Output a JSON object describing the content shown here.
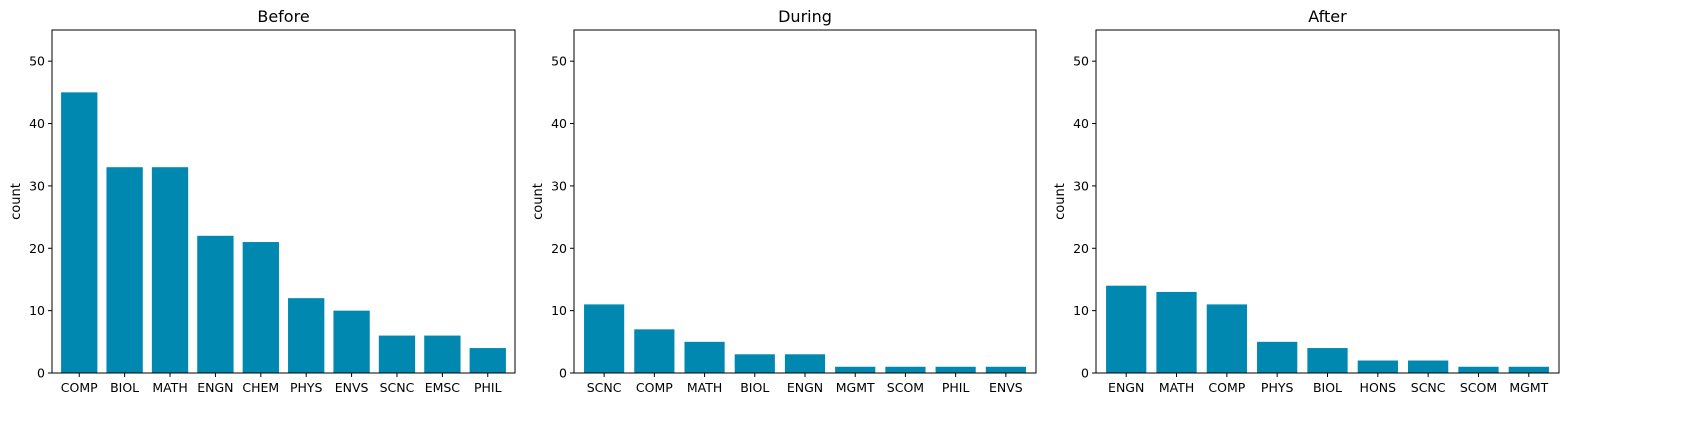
{
  "style": {
    "bar_color": "#0088b0",
    "axis_color": "#000000",
    "background": "#ffffff"
  },
  "chart_data": [
    {
      "type": "bar",
      "title": "Before",
      "xlabel": "",
      "ylabel": "count",
      "ylim": [
        0,
        55
      ],
      "yticks": [
        0,
        10,
        20,
        30,
        40,
        50
      ],
      "grid": false,
      "categories": [
        "COMP",
        "BIOL",
        "MATH",
        "ENGN",
        "CHEM",
        "PHYS",
        "ENVS",
        "SCNC",
        "EMSC",
        "PHIL"
      ],
      "values": [
        45,
        33,
        33,
        22,
        21,
        12,
        10,
        6,
        6,
        4
      ]
    },
    {
      "type": "bar",
      "title": "During",
      "xlabel": "",
      "ylabel": "count",
      "ylim": [
        0,
        55
      ],
      "yticks": [
        0,
        10,
        20,
        30,
        40,
        50
      ],
      "grid": false,
      "categories": [
        "SCNC",
        "COMP",
        "MATH",
        "BIOL",
        "ENGN",
        "MGMT",
        "SCOM",
        "PHIL",
        "ENVS"
      ],
      "values": [
        11,
        7,
        5,
        3,
        3,
        1,
        1,
        1,
        1
      ]
    },
    {
      "type": "bar",
      "title": "After",
      "xlabel": "",
      "ylabel": "count",
      "ylim": [
        0,
        55
      ],
      "yticks": [
        0,
        10,
        20,
        30,
        40,
        50
      ],
      "grid": false,
      "categories": [
        "ENGN",
        "MATH",
        "COMP",
        "PHYS",
        "BIOL",
        "HONS",
        "SCNC",
        "SCOM",
        "MGMT"
      ],
      "values": [
        14,
        13,
        11,
        5,
        4,
        2,
        2,
        1,
        1
      ]
    }
  ]
}
